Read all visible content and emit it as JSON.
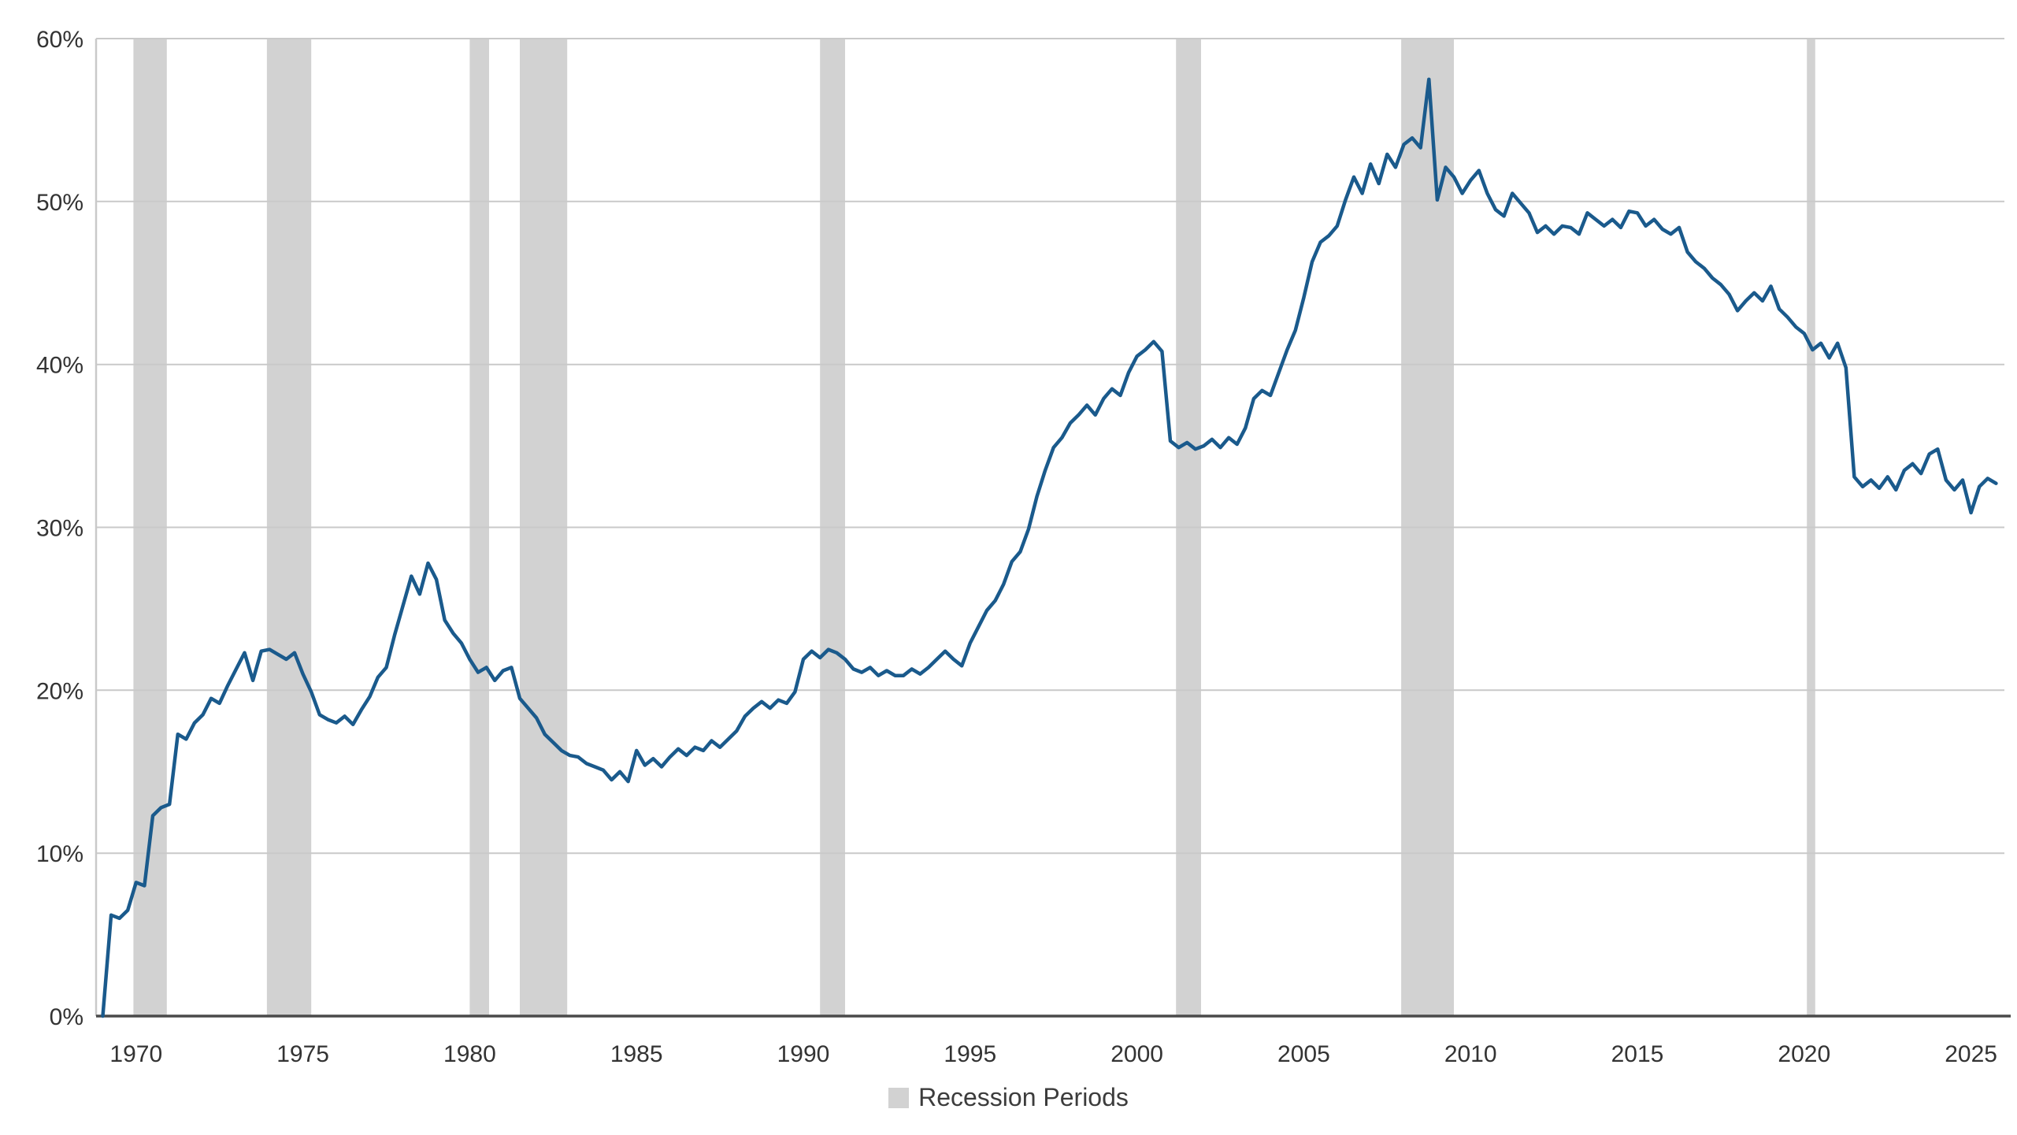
{
  "chart_data": {
    "type": "line",
    "title": "",
    "xlabel": "",
    "ylabel": "",
    "legend_label": "Recession Periods",
    "legend_position": "bottom-center",
    "grid": "horizontal",
    "line_color": "#1a5a8c",
    "band_color": "#d2d2d2",
    "grid_color": "#c9c9c9",
    "axis_color": "#4a4a4a",
    "tick_label_color": "#333333",
    "ylim": [
      0,
      60
    ],
    "xlim": [
      1968.8,
      2026.0
    ],
    "y_ticks": [
      0,
      10,
      20,
      30,
      40,
      50,
      60
    ],
    "y_tick_suffix": "%",
    "x_ticks": [
      1970,
      1975,
      1980,
      1985,
      1990,
      1995,
      2000,
      2005,
      2010,
      2015,
      2020,
      2025
    ],
    "recession_bands": [
      [
        1969.92,
        1970.92
      ],
      [
        1973.92,
        1975.25
      ],
      [
        1980.0,
        1980.58
      ],
      [
        1981.5,
        1982.92
      ],
      [
        1990.5,
        1991.25
      ],
      [
        2001.17,
        2001.92
      ],
      [
        2007.92,
        2009.5
      ],
      [
        2020.08,
        2020.33
      ]
    ],
    "x_start": 1969.0,
    "x_step": 0.25,
    "values": [
      0,
      6.2,
      6.0,
      6.5,
      8.2,
      8.0,
      12.3,
      12.8,
      13.0,
      17.3,
      17.0,
      18.0,
      18.5,
      19.5,
      19.2,
      20.3,
      21.3,
      22.3,
      20.6,
      22.4,
      22.5,
      22.2,
      21.9,
      22.3,
      21.0,
      19.9,
      18.5,
      18.2,
      18.0,
      18.4,
      17.9,
      18.8,
      19.6,
      20.8,
      21.4,
      23.4,
      25.2,
      27.0,
      25.9,
      27.8,
      26.8,
      24.3,
      23.5,
      22.9,
      21.9,
      21.1,
      21.4,
      20.6,
      21.2,
      21.4,
      19.5,
      18.9,
      18.3,
      17.3,
      16.8,
      16.3,
      16.0,
      15.9,
      15.5,
      15.3,
      15.1,
      14.5,
      15.0,
      14.4,
      16.3,
      15.4,
      15.8,
      15.3,
      15.9,
      16.4,
      16.0,
      16.5,
      16.3,
      16.9,
      16.5,
      17.0,
      17.5,
      18.4,
      18.9,
      19.3,
      18.9,
      19.4,
      19.2,
      19.9,
      21.9,
      22.4,
      22.0,
      22.5,
      22.3,
      21.9,
      21.3,
      21.1,
      21.4,
      20.9,
      21.2,
      20.9,
      20.9,
      21.3,
      21.0,
      21.4,
      21.9,
      22.4,
      21.9,
      21.5,
      22.9,
      23.9,
      24.9,
      25.5,
      26.5,
      27.9,
      28.5,
      29.9,
      31.9,
      33.5,
      34.9,
      35.5,
      36.4,
      36.9,
      37.5,
      36.9,
      37.9,
      38.5,
      38.1,
      39.5,
      40.5,
      40.9,
      41.4,
      40.8,
      35.3,
      34.9,
      35.2,
      34.8,
      35.0,
      35.4,
      34.9,
      35.5,
      35.1,
      36.1,
      37.9,
      38.4,
      38.1,
      39.5,
      40.9,
      42.1,
      44.1,
      46.3,
      47.5,
      47.9,
      48.5,
      50.1,
      51.5,
      50.5,
      52.3,
      51.1,
      52.9,
      52.1,
      53.5,
      53.9,
      53.3,
      57.5,
      50.1,
      52.1,
      51.5,
      50.5,
      51.3,
      51.9,
      50.5,
      49.5,
      49.1,
      50.5,
      49.9,
      49.3,
      48.1,
      48.5,
      48.0,
      48.5,
      48.4,
      48.0,
      49.3,
      48.9,
      48.5,
      48.9,
      48.4,
      49.4,
      49.3,
      48.5,
      48.9,
      48.3,
      48.0,
      48.4,
      46.9,
      46.3,
      45.9,
      45.3,
      44.9,
      44.3,
      43.3,
      43.9,
      44.4,
      43.9,
      44.8,
      43.4,
      42.9,
      42.3,
      41.9,
      40.9,
      41.3,
      40.4,
      41.3,
      39.8,
      33.1,
      32.5,
      32.9,
      32.4,
      33.1,
      32.3,
      33.5,
      33.9,
      33.3,
      34.5,
      34.8,
      32.9,
      32.3,
      32.9,
      30.9,
      32.5,
      33.0,
      32.7
    ]
  }
}
